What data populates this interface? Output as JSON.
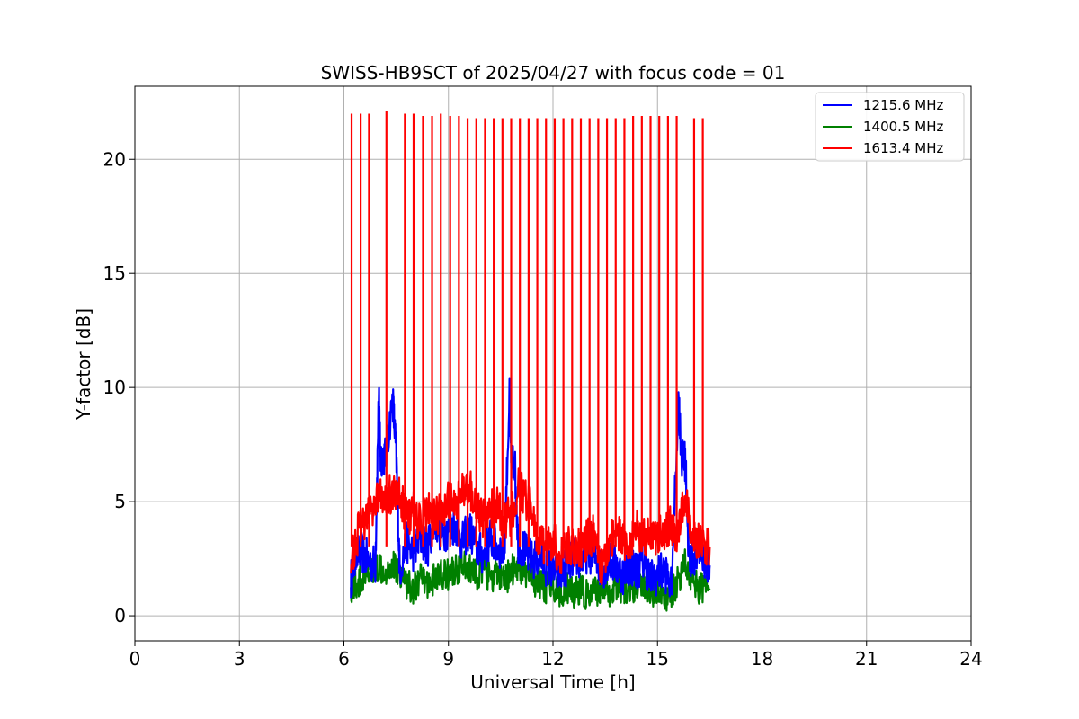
{
  "chart_data": {
    "type": "line",
    "title": "SWISS-HB9SCT of 2025/04/27 with focus code = 01",
    "xlabel": "Universal Time [h]",
    "ylabel": "Y-factor [dB]",
    "xlim": [
      0,
      24
    ],
    "ylim": [
      -1.1,
      23.2
    ],
    "xticks": [
      0,
      3,
      6,
      9,
      12,
      15,
      18,
      21,
      24
    ],
    "xtick_labels": [
      "0",
      "3",
      "6",
      "9",
      "12",
      "15",
      "18",
      "21",
      "24"
    ],
    "yticks": [
      0,
      5,
      10,
      15,
      20
    ],
    "ytick_labels": [
      "0",
      "5",
      "10",
      "15",
      "20"
    ],
    "grid": true,
    "legend_position": "top-right",
    "series": [
      {
        "name": "1215.6 MHz",
        "color": "#0000ff",
        "x": [
          6.2,
          6.3,
          6.5,
          6.7,
          6.9,
          7.0,
          7.05,
          7.2,
          7.4,
          7.5,
          7.6,
          7.8,
          8.0,
          8.2,
          8.4,
          8.6,
          8.8,
          9.0,
          9.2,
          9.4,
          9.6,
          9.8,
          10.0,
          10.2,
          10.4,
          10.6,
          10.75,
          10.8,
          10.9,
          11.0,
          11.2,
          11.4,
          11.6,
          11.8,
          12.0,
          12.2,
          12.4,
          12.6,
          12.8,
          13.0,
          13.2,
          13.4,
          13.6,
          13.8,
          14.0,
          14.2,
          14.4,
          14.6,
          14.8,
          15.0,
          15.2,
          15.4,
          15.6,
          15.7,
          15.8,
          15.9,
          16.0,
          16.2,
          16.4,
          16.5
        ],
        "y": [
          1.5,
          2.6,
          2.8,
          2.4,
          2.2,
          9.6,
          7.0,
          7.0,
          9.5,
          7.1,
          2.0,
          3.2,
          2.8,
          3.4,
          3.0,
          4.2,
          3.6,
          3.8,
          4.0,
          3.2,
          3.8,
          3.0,
          2.6,
          3.4,
          3.0,
          2.8,
          9.5,
          6.8,
          6.8,
          3.2,
          2.8,
          2.4,
          2.6,
          2.2,
          2.0,
          1.8,
          2.2,
          2.6,
          2.4,
          2.8,
          2.6,
          2.0,
          2.4,
          2.2,
          1.8,
          2.2,
          2.0,
          2.4,
          1.6,
          1.8,
          2.0,
          1.2,
          9.6,
          6.8,
          6.8,
          2.4,
          2.6,
          2.8,
          2.4,
          2.2
        ]
      },
      {
        "name": "1400.5 MHz",
        "color": "#008000",
        "x": [
          6.2,
          6.4,
          6.6,
          6.8,
          7.0,
          7.2,
          7.4,
          7.6,
          7.8,
          8.0,
          8.2,
          8.4,
          8.6,
          8.8,
          9.0,
          9.2,
          9.4,
          9.6,
          9.8,
          10.0,
          10.2,
          10.4,
          10.6,
          10.8,
          11.0,
          11.2,
          11.4,
          11.6,
          11.8,
          12.0,
          12.2,
          12.4,
          12.6,
          12.8,
          13.0,
          13.2,
          13.4,
          13.6,
          13.8,
          14.0,
          14.2,
          14.4,
          14.6,
          14.8,
          15.0,
          15.2,
          15.4,
          15.6,
          15.8,
          16.0,
          16.2,
          16.5
        ],
        "y": [
          1.2,
          1.4,
          1.6,
          1.8,
          2.2,
          2.0,
          2.2,
          2.0,
          1.4,
          1.2,
          1.6,
          1.4,
          1.6,
          1.8,
          1.8,
          2.0,
          2.2,
          2.0,
          1.8,
          2.0,
          1.6,
          1.8,
          1.4,
          2.0,
          2.2,
          1.8,
          1.6,
          1.4,
          1.2,
          1.4,
          1.0,
          1.2,
          1.0,
          1.2,
          0.8,
          1.0,
          1.2,
          1.0,
          1.4,
          1.2,
          1.0,
          1.4,
          1.2,
          1.0,
          1.2,
          0.8,
          1.0,
          1.6,
          2.4,
          1.6,
          1.2,
          1.2
        ]
      },
      {
        "name": "1613.4 MHz",
        "color": "#ff0000",
        "x": [
          6.2,
          6.4,
          6.6,
          6.8,
          7.0,
          7.2,
          7.4,
          7.6,
          7.8,
          8.0,
          8.2,
          8.4,
          8.6,
          8.8,
          9.0,
          9.2,
          9.4,
          9.6,
          9.8,
          10.0,
          10.2,
          10.4,
          10.6,
          10.8,
          11.0,
          11.2,
          11.4,
          11.6,
          11.8,
          12.0,
          12.2,
          12.4,
          12.6,
          12.8,
          13.0,
          13.2,
          13.4,
          13.6,
          13.8,
          14.0,
          14.2,
          14.4,
          14.6,
          14.8,
          15.0,
          15.2,
          15.4,
          15.6,
          15.8,
          16.0,
          16.2,
          16.5
        ],
        "y": [
          2.4,
          3.6,
          4.2,
          4.6,
          5.4,
          5.4,
          5.3,
          5.4,
          4.2,
          4.6,
          4.0,
          4.6,
          4.2,
          4.6,
          5.0,
          4.8,
          5.4,
          5.6,
          4.8,
          4.2,
          4.6,
          4.8,
          4.2,
          4.4,
          5.6,
          5.2,
          4.4,
          3.2,
          3.0,
          3.4,
          2.4,
          3.2,
          2.8,
          3.0,
          3.4,
          3.6,
          2.0,
          3.2,
          3.8,
          3.4,
          3.2,
          3.8,
          3.6,
          3.4,
          3.6,
          3.8,
          4.0,
          3.4,
          5.4,
          3.2,
          3.4,
          3.0
        ],
        "peaks_x": [
          6.22,
          6.48,
          6.72,
          7.22,
          7.75,
          8.0,
          8.27,
          8.53,
          8.78,
          9.05,
          9.3,
          9.55,
          9.8,
          10.05,
          10.3,
          10.55,
          10.8,
          11.05,
          11.3,
          11.55,
          11.8,
          12.05,
          12.3,
          12.55,
          12.8,
          13.05,
          13.3,
          13.55,
          13.8,
          14.05,
          14.3,
          14.55,
          14.8,
          15.05,
          15.3,
          15.55,
          16.05,
          16.3
        ],
        "peaks_y": [
          22.0,
          22.0,
          22.0,
          22.1,
          22.0,
          22.0,
          21.9,
          21.9,
          22.0,
          21.9,
          21.9,
          21.8,
          21.8,
          21.8,
          21.8,
          21.8,
          21.8,
          21.8,
          21.8,
          21.8,
          21.8,
          21.8,
          21.8,
          21.8,
          21.8,
          21.8,
          21.8,
          21.8,
          21.8,
          21.8,
          21.9,
          21.9,
          21.9,
          21.9,
          21.9,
          21.9,
          21.8,
          21.8
        ]
      }
    ]
  }
}
